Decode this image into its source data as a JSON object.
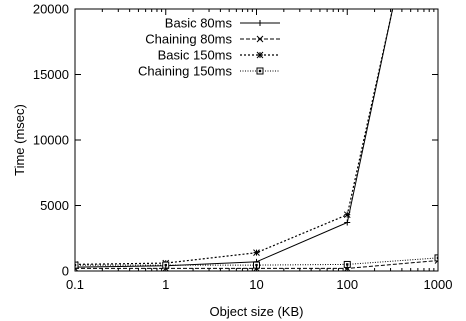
{
  "chart_data": {
    "type": "line",
    "title": "",
    "xlabel": "Object size (KB)",
    "ylabel": "Time (msec)",
    "x_scale": "log",
    "xlim": [
      0.1,
      1000
    ],
    "ylim": [
      0,
      20000
    ],
    "x_ticks": [
      0.1,
      1,
      10,
      100,
      1000
    ],
    "x_tick_labels": [
      "0.1",
      "1",
      "10",
      "100",
      "1000"
    ],
    "y_ticks": [
      0,
      5000,
      10000,
      15000,
      20000
    ],
    "y_tick_labels": [
      "0",
      "5000",
      "10000",
      "15000",
      "20000"
    ],
    "grid": false,
    "legend_position": "top-left",
    "series": [
      {
        "name": "Basic 80ms",
        "marker": "plus",
        "dash": "solid",
        "x": [
          0.1,
          1,
          10,
          100,
          316
        ],
        "y": [
          300,
          400,
          700,
          3700,
          20000
        ]
      },
      {
        "name": "Chaining 80ms",
        "marker": "cross",
        "dash": "dashed",
        "x": [
          0.1,
          1,
          10,
          100,
          1000
        ],
        "y": [
          200,
          200,
          200,
          200,
          800
        ]
      },
      {
        "name": "Basic 150ms",
        "marker": "star",
        "dash": "dotted",
        "x": [
          0.1,
          1,
          10,
          100,
          316
        ],
        "y": [
          500,
          600,
          1400,
          4300,
          20000
        ]
      },
      {
        "name": "Chaining 150ms",
        "marker": "square",
        "dash": "dense-dotted",
        "x": [
          0.1,
          1,
          10,
          100,
          1000
        ],
        "y": [
          450,
          450,
          450,
          500,
          1000
        ]
      }
    ]
  }
}
